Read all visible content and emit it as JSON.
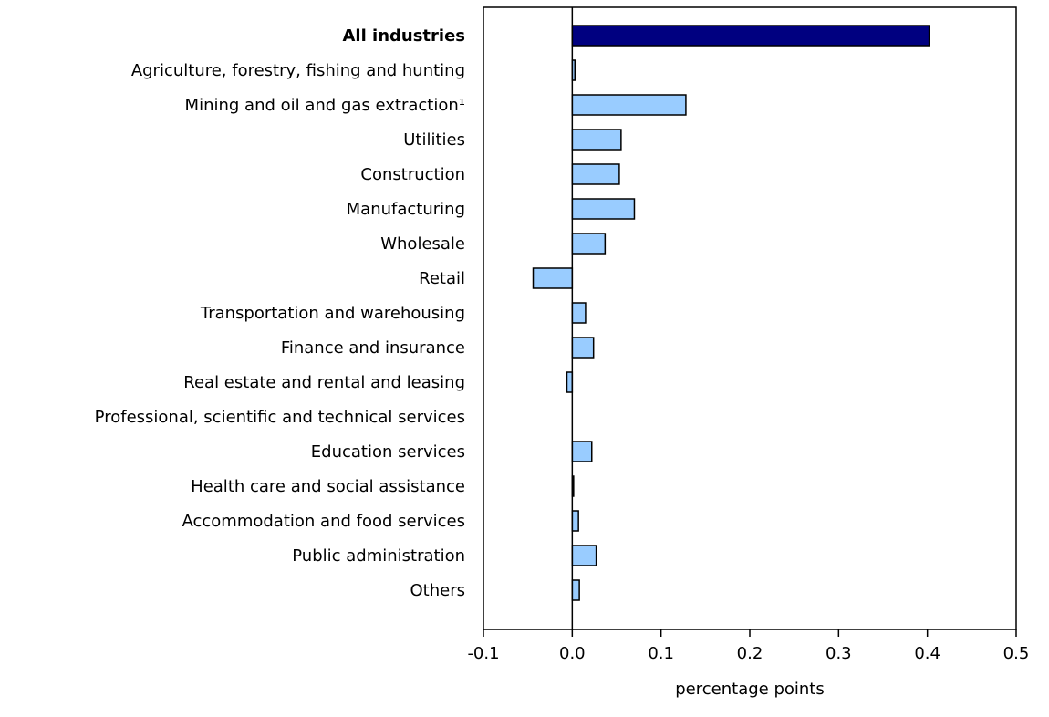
{
  "chart_data": {
    "type": "bar",
    "orientation": "horizontal",
    "title": "",
    "xlabel": "percentage points",
    "ylabel": "",
    "xlim": [
      -0.1,
      0.5
    ],
    "xticks": [
      "-0.1",
      "0.0",
      "0.1",
      "0.2",
      "0.3",
      "0.4",
      "0.5"
    ],
    "grid": false,
    "colors": {
      "total": "#000080",
      "industry": "#99ccff",
      "outline": "#000000"
    },
    "categories": [
      "All industries",
      "Agriculture, forestry, fishing and hunting",
      "Mining and oil and gas extraction¹",
      "Utilities",
      "Construction",
      "Manufacturing",
      "Wholesale",
      "Retail",
      "Transportation and warehousing",
      "Finance and insurance",
      "Real estate and rental and leasing",
      "Professional, scientific and technical services",
      "Education services",
      "Health care and social assistance",
      "Accommodation and food services",
      "Public administration",
      "Others"
    ],
    "values": [
      0.402,
      0.003,
      0.128,
      0.055,
      0.053,
      0.07,
      0.037,
      -0.044,
      0.015,
      0.024,
      -0.006,
      0.0,
      0.022,
      0.001,
      0.007,
      0.027,
      0.008
    ]
  }
}
